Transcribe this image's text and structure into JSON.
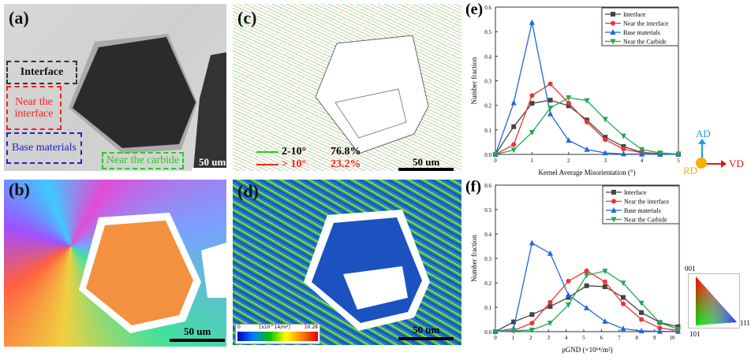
{
  "panels": {
    "a": {
      "label": "(a)",
      "scale": "50 um",
      "regions": {
        "interface": "Interface",
        "near_interface": "Near the interface",
        "base": "Base materials",
        "near_carbide": "Near the carbide"
      },
      "colors": {
        "interface": "#333333",
        "near_interface": "#ff2020",
        "base": "#2222cc",
        "near_carbide": "#22cc22"
      }
    },
    "b": {
      "label": "(b)",
      "scale": "50 um"
    },
    "c": {
      "label": "(c)",
      "scale": "50 um",
      "legend": [
        {
          "range": "2-10°",
          "percent": "76.8%",
          "color": "#22cc22"
        },
        {
          "range": "> 10°",
          "percent": "23.2%",
          "color": "#ff2020"
        }
      ]
    },
    "d": {
      "label": "(d)",
      "scale": "50 um",
      "colorbar": {
        "min": "0",
        "unit": "[x10^14/m²]",
        "max": "10.28"
      }
    }
  },
  "axes_legend": {
    "up": "AD",
    "right": "VD",
    "center": "RD",
    "colors": {
      "up": "#1aa0e0",
      "right": "#ee1111",
      "center": "#f5b000"
    }
  },
  "ipf_key": {
    "top": "001",
    "bottom": "101",
    "right": "111"
  },
  "chart_data": [
    {
      "panel_label": "(e)",
      "type": "line",
      "xlabel": "Kernel Average Misorientation (°)",
      "ylabel": "Number fraction",
      "xlim": [
        0,
        5
      ],
      "ylim": [
        0,
        0.6
      ],
      "xticks": [
        "0",
        "1",
        "2",
        "3",
        "4",
        "5"
      ],
      "yticks": [
        "0.0",
        "0.1",
        "0.2",
        "0.3",
        "0.4",
        "0.5",
        "0.6"
      ],
      "legend_position": "top-right",
      "x": [
        0,
        0.5,
        1,
        1.5,
        2,
        2.5,
        3,
        3.5,
        4,
        4.5,
        5
      ],
      "series": [
        {
          "name": "Interface",
          "color": "#444444",
          "marker": "square",
          "values": [
            0,
            0.113,
            0.208,
            0.221,
            0.198,
            0.14,
            0.07,
            0.032,
            0.008,
            0.003,
            0.001
          ]
        },
        {
          "name": "Near the interface",
          "color": "#ee3333",
          "marker": "circle",
          "values": [
            0,
            0.04,
            0.24,
            0.287,
            0.209,
            0.132,
            0.06,
            0.022,
            0.006,
            0.002,
            0.001
          ]
        },
        {
          "name": "Base materials",
          "color": "#2266dd",
          "marker": "triangle-up",
          "values": [
            0,
            0.21,
            0.537,
            0.165,
            0.057,
            0.02,
            0.006,
            0.002,
            0.001,
            0,
            0
          ]
        },
        {
          "name": "Near the Carbide",
          "color": "#22aa55",
          "marker": "triangle-down",
          "values": [
            0,
            0.018,
            0.09,
            0.189,
            0.231,
            0.219,
            0.143,
            0.075,
            0.02,
            0.006,
            0.002
          ]
        }
      ]
    },
    {
      "panel_label": "(f)",
      "type": "line",
      "xlabel": "ρGND (×10¹⁴/m²)",
      "ylabel": "Number fraction",
      "xlim": [
        0,
        10.4
      ],
      "ylim": [
        0,
        0.6
      ],
      "xticks": [
        "0",
        "1",
        "2",
        "3",
        "4",
        "5",
        "6",
        "7",
        "8",
        "9",
        "10"
      ],
      "yticks": [
        "0.0",
        "0.1",
        "0.2",
        "0.3",
        "0.4",
        "0.5",
        "0.6"
      ],
      "legend_position": "top-right",
      "x": [
        0,
        1.03,
        2.07,
        3.1,
        4.13,
        5.16,
        6.2,
        7.23,
        8.26,
        9.3,
        10.33
      ],
      "series": [
        {
          "name": "Interface",
          "color": "#444444",
          "marker": "square",
          "values": [
            0,
            0.04,
            0.07,
            0.103,
            0.14,
            0.188,
            0.184,
            0.14,
            0.078,
            0.038,
            0.02
          ]
        },
        {
          "name": "Near the interface",
          "color": "#ee3333",
          "marker": "circle",
          "values": [
            0,
            0.005,
            0.035,
            0.12,
            0.207,
            0.249,
            0.204,
            0.114,
            0.05,
            0.015,
            0.005
          ]
        },
        {
          "name": "Base materials",
          "color": "#2266dd",
          "marker": "triangle-up",
          "values": [
            0,
            0.013,
            0.363,
            0.32,
            0.15,
            0.097,
            0.042,
            0.012,
            0.003,
            0.001,
            0.001
          ]
        },
        {
          "name": "Near the Carbide",
          "color": "#22aa55",
          "marker": "triangle-down",
          "values": [
            0,
            0.003,
            0.007,
            0.035,
            0.11,
            0.231,
            0.248,
            0.199,
            0.117,
            0.037,
            0.01
          ]
        }
      ]
    }
  ]
}
